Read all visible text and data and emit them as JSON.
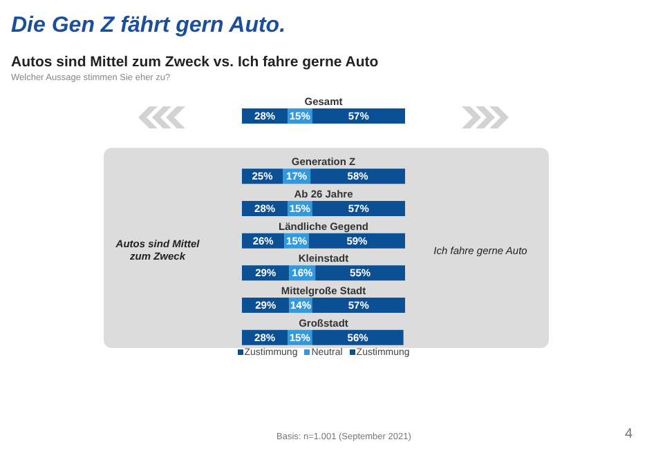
{
  "chart_data": [
    {
      "type": "bar",
      "title": "Die Gen Z fährt gern Auto.",
      "subtitle": "Autos sind Mittel zum Zweck vs. Ich fahre gerne Auto",
      "annotations": [
        "Welcher Aussage stimmen Sie eher zu?",
        "Basis: n=1.001 (September 2021)",
        "4"
      ],
      "orientation": "horizontal",
      "stacked": true,
      "xlim": [
        0,
        100
      ],
      "tick_labels": "y",
      "categories": [
        "Gesamt"
      ],
      "series": [
        {
          "color": "#0b4f94",
          "values": [
            28
          ],
          "value_labels": [
            "28%"
          ]
        },
        {
          "color": "#3399dd",
          "values": [
            15
          ],
          "value_labels": [
            "15%"
          ]
        },
        {
          "color": "#0b4f94",
          "values": [
            57
          ],
          "value_labels": [
            "57%"
          ]
        }
      ]
    },
    {
      "type": "bar",
      "annotations": [
        "Autos sind Mittel zum Zweck",
        "Ich fahre gerne Auto"
      ],
      "orientation": "horizontal",
      "stacked": true,
      "xlim": [
        0,
        100
      ],
      "tick_labels": "y",
      "legend": "bottom",
      "categories": [
        "Generation Z",
        "Ab 26 Jahre",
        "Ländliche Gegend",
        "Kleinstadt",
        "Mittelgroße Stadt",
        "Großstadt"
      ],
      "series": [
        {
          "name": "Zustimmung",
          "color": "#0b4f94",
          "values": [
            25,
            28,
            26,
            29,
            29,
            28
          ],
          "value_labels": [
            "25%",
            "28%",
            "26%",
            "29%",
            "29%",
            "28%"
          ]
        },
        {
          "name": "Neutral",
          "color": "#3399dd",
          "values": [
            17,
            15,
            15,
            16,
            14,
            15
          ],
          "value_labels": [
            "17%",
            "15%",
            "15%",
            "16%",
            "14%",
            "15%"
          ]
        },
        {
          "name": "Zustimmung",
          "color": "#0b4f94",
          "values": [
            58,
            57,
            59,
            55,
            57,
            56
          ],
          "value_labels": [
            "58%",
            "57%",
            "59%",
            "55%",
            "57%",
            "56%"
          ]
        }
      ]
    }
  ]
}
